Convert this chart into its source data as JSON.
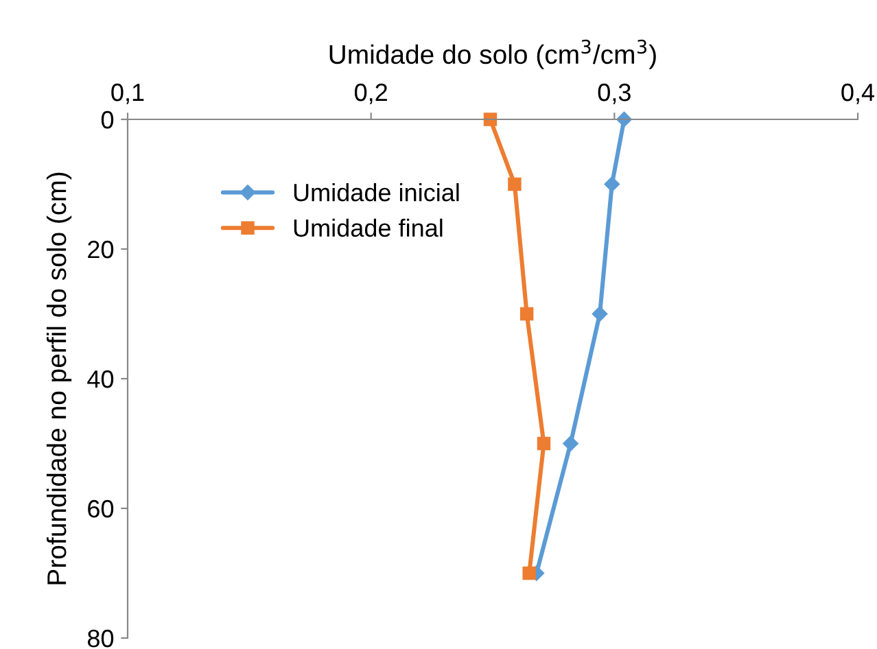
{
  "chart_data": {
    "type": "line",
    "xlabel": "Umidade do solo (cm$^{3}$/cm$^{3}$)",
    "ylabel": "Profundidade no perfil do solo (cm)",
    "xlim": [
      0.1,
      0.4
    ],
    "xticks": [
      {
        "value": 0.1,
        "label": "0,1"
      },
      {
        "value": 0.2,
        "label": "0,2"
      },
      {
        "value": 0.3,
        "label": "0,3"
      },
      {
        "value": 0.4,
        "label": "0,4"
      }
    ],
    "ylim": [
      80,
      0
    ],
    "yticks": [
      0,
      20,
      40,
      60,
      80
    ],
    "grid": false,
    "legend": "top left",
    "series": [
      {
        "name": "Umidade inicial",
        "color": "#5b9bd5",
        "marker": "diamond",
        "x": [
          0.304,
          0.299,
          0.294,
          0.282,
          0.268
        ],
        "values": [
          0,
          10,
          30,
          50,
          70
        ]
      },
      {
        "name": "Umidade final",
        "color": "#ed7d31",
        "marker": "square",
        "x": [
          0.249,
          0.259,
          0.264,
          0.271,
          0.265
        ],
        "values": [
          0,
          10,
          30,
          50,
          70
        ]
      }
    ]
  }
}
